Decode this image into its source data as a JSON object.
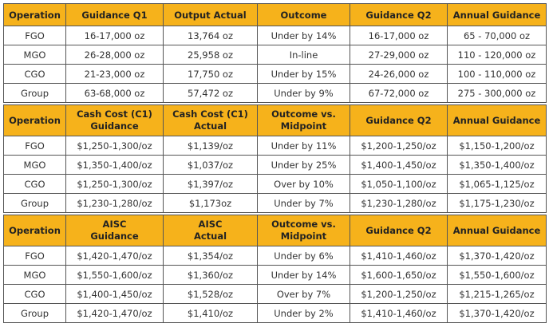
{
  "sections": [
    {
      "headers": [
        "Operation",
        "Guidance Q1",
        "Output Actual",
        "Outcome",
        "Guidance Q2",
        "Annual Guidance"
      ],
      "rows": [
        [
          "FGO",
          "16-17,000 oz",
          "13,764 oz",
          "Under by 14%",
          "16-17,000 oz",
          "65 - 70,000 oz"
        ],
        [
          "MGO",
          "26-28,000 oz",
          "25,958 oz",
          "In-line",
          "27-29,000 oz",
          "110 - 120,000 oz"
        ],
        [
          "CGO",
          "21-23,000 oz",
          "17,750 oz",
          "Under by 15%",
          "24-26,000 oz",
          "100 - 110,000 oz"
        ],
        [
          "Group",
          "63-68,000 oz",
          "57,472 oz",
          "Under by 9%",
          "67-72,000 oz",
          "275 - 300,000 oz"
        ]
      ]
    },
    {
      "headers": [
        "Operation",
        "Cash Cost (C1)\nGuidance",
        "Cash Cost (C1)\nActual",
        "Outcome vs.\nMidpoint",
        "Guidance Q2",
        "Annual Guidance"
      ],
      "rows": [
        [
          "FGO",
          "$1,250-1,300/oz",
          "$1,139/oz",
          "Under by 11%",
          "$1,200-1,250/oz",
          "$1,150-1,200/oz"
        ],
        [
          "MGO",
          "$1,350-1,400/oz",
          "$1,037/oz",
          "Under by 25%",
          "$1,400-1,450/oz",
          "$1,350-1,400/oz"
        ],
        [
          "CGO",
          "$1,250-1,300/oz",
          "$1,397/oz",
          "Over by 10%",
          "$1,050-1,100/oz",
          "$1,065-1,125/oz"
        ],
        [
          "Group",
          "$1,230-1,280/oz",
          "$1,173oz",
          "Under by 7%",
          "$1,230-1,280/oz",
          "$1,175-1,230/oz"
        ]
      ]
    },
    {
      "headers": [
        "Operation",
        "AISC\nGuidance",
        "AISC\nActual",
        "Outcome vs.\nMidpoint",
        "Guidance Q2",
        "Annual Guidance"
      ],
      "rows": [
        [
          "FGO",
          "$1,420-1,470/oz",
          "$1,354/oz",
          "Under by 6%",
          "$1,410-1,460/oz",
          "$1,370-1,420/oz"
        ],
        [
          "MGO",
          "$1,550-1,600/oz",
          "$1,360/oz",
          "Under by 14%",
          "$1,600-1,650/oz",
          "$1,550-1,600/oz"
        ],
        [
          "CGO",
          "$1,400-1,450/oz",
          "$1,528/oz",
          "Over by 7%",
          "$1,200-1,250/oz",
          "$1,215-1,265/oz"
        ],
        [
          "Group",
          "$1,420-1,470/oz",
          "$1,410/oz",
          "Under by 2%",
          "$1,410-1,460/oz",
          "$1,370-1,420/oz"
        ]
      ]
    }
  ],
  "colors": {
    "header_bg": "#f6b21b",
    "border": "#555555",
    "text": "#333333"
  }
}
